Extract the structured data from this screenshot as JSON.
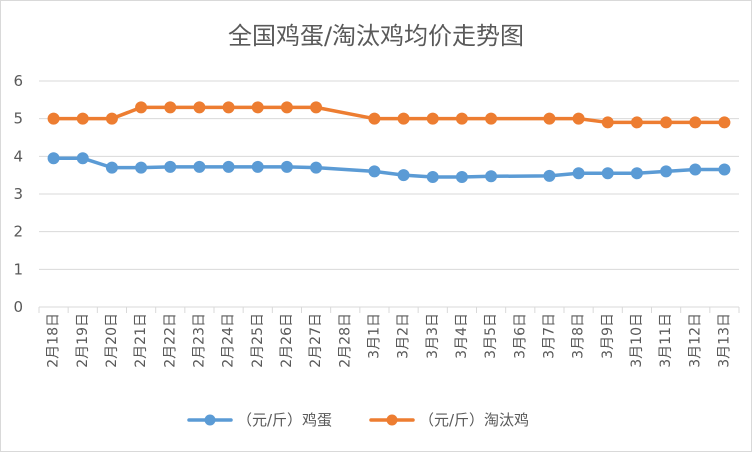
{
  "chart_data": {
    "type": "line",
    "title": "全国鸡蛋/淘汰鸡均价走势图",
    "xlabel": "",
    "ylabel": "",
    "ylim": [
      0,
      6
    ],
    "yticks": [
      "0",
      "1",
      "2",
      "3",
      "4",
      "5",
      "6"
    ],
    "grid": "horizontal",
    "legend_position": "bottom",
    "categories": [
      "2月18日",
      "2月19日",
      "2月20日",
      "2月21日",
      "2月22日",
      "2月23日",
      "2月24日",
      "2月25日",
      "2月26日",
      "2月27日",
      "2月28日",
      "3月1日",
      "3月2日",
      "3月3日",
      "3月4日",
      "3月5日",
      "3月6日",
      "3月7日",
      "3月8日",
      "3月9日",
      "3月10日",
      "3月11日",
      "3月12日",
      "3月13日"
    ],
    "series": [
      {
        "name": "（元/斤）鸡蛋",
        "color": "#5b9bd5",
        "values": [
          3.95,
          3.95,
          3.7,
          3.7,
          3.72,
          3.72,
          3.72,
          3.72,
          3.72,
          3.7,
          null,
          3.6,
          3.5,
          3.45,
          3.45,
          3.47,
          null,
          3.48,
          3.55,
          3.55,
          3.55,
          3.6,
          3.65,
          3.65
        ]
      },
      {
        "name": "（元/斤）淘汰鸡",
        "color": "#ed7d31",
        "values": [
          5.0,
          5.0,
          5.0,
          5.3,
          5.3,
          5.3,
          5.3,
          5.3,
          5.3,
          5.3,
          null,
          5.0,
          5.0,
          5.0,
          5.0,
          5.0,
          null,
          5.0,
          5.0,
          4.9,
          4.9,
          4.9,
          4.9,
          4.9
        ]
      }
    ]
  }
}
